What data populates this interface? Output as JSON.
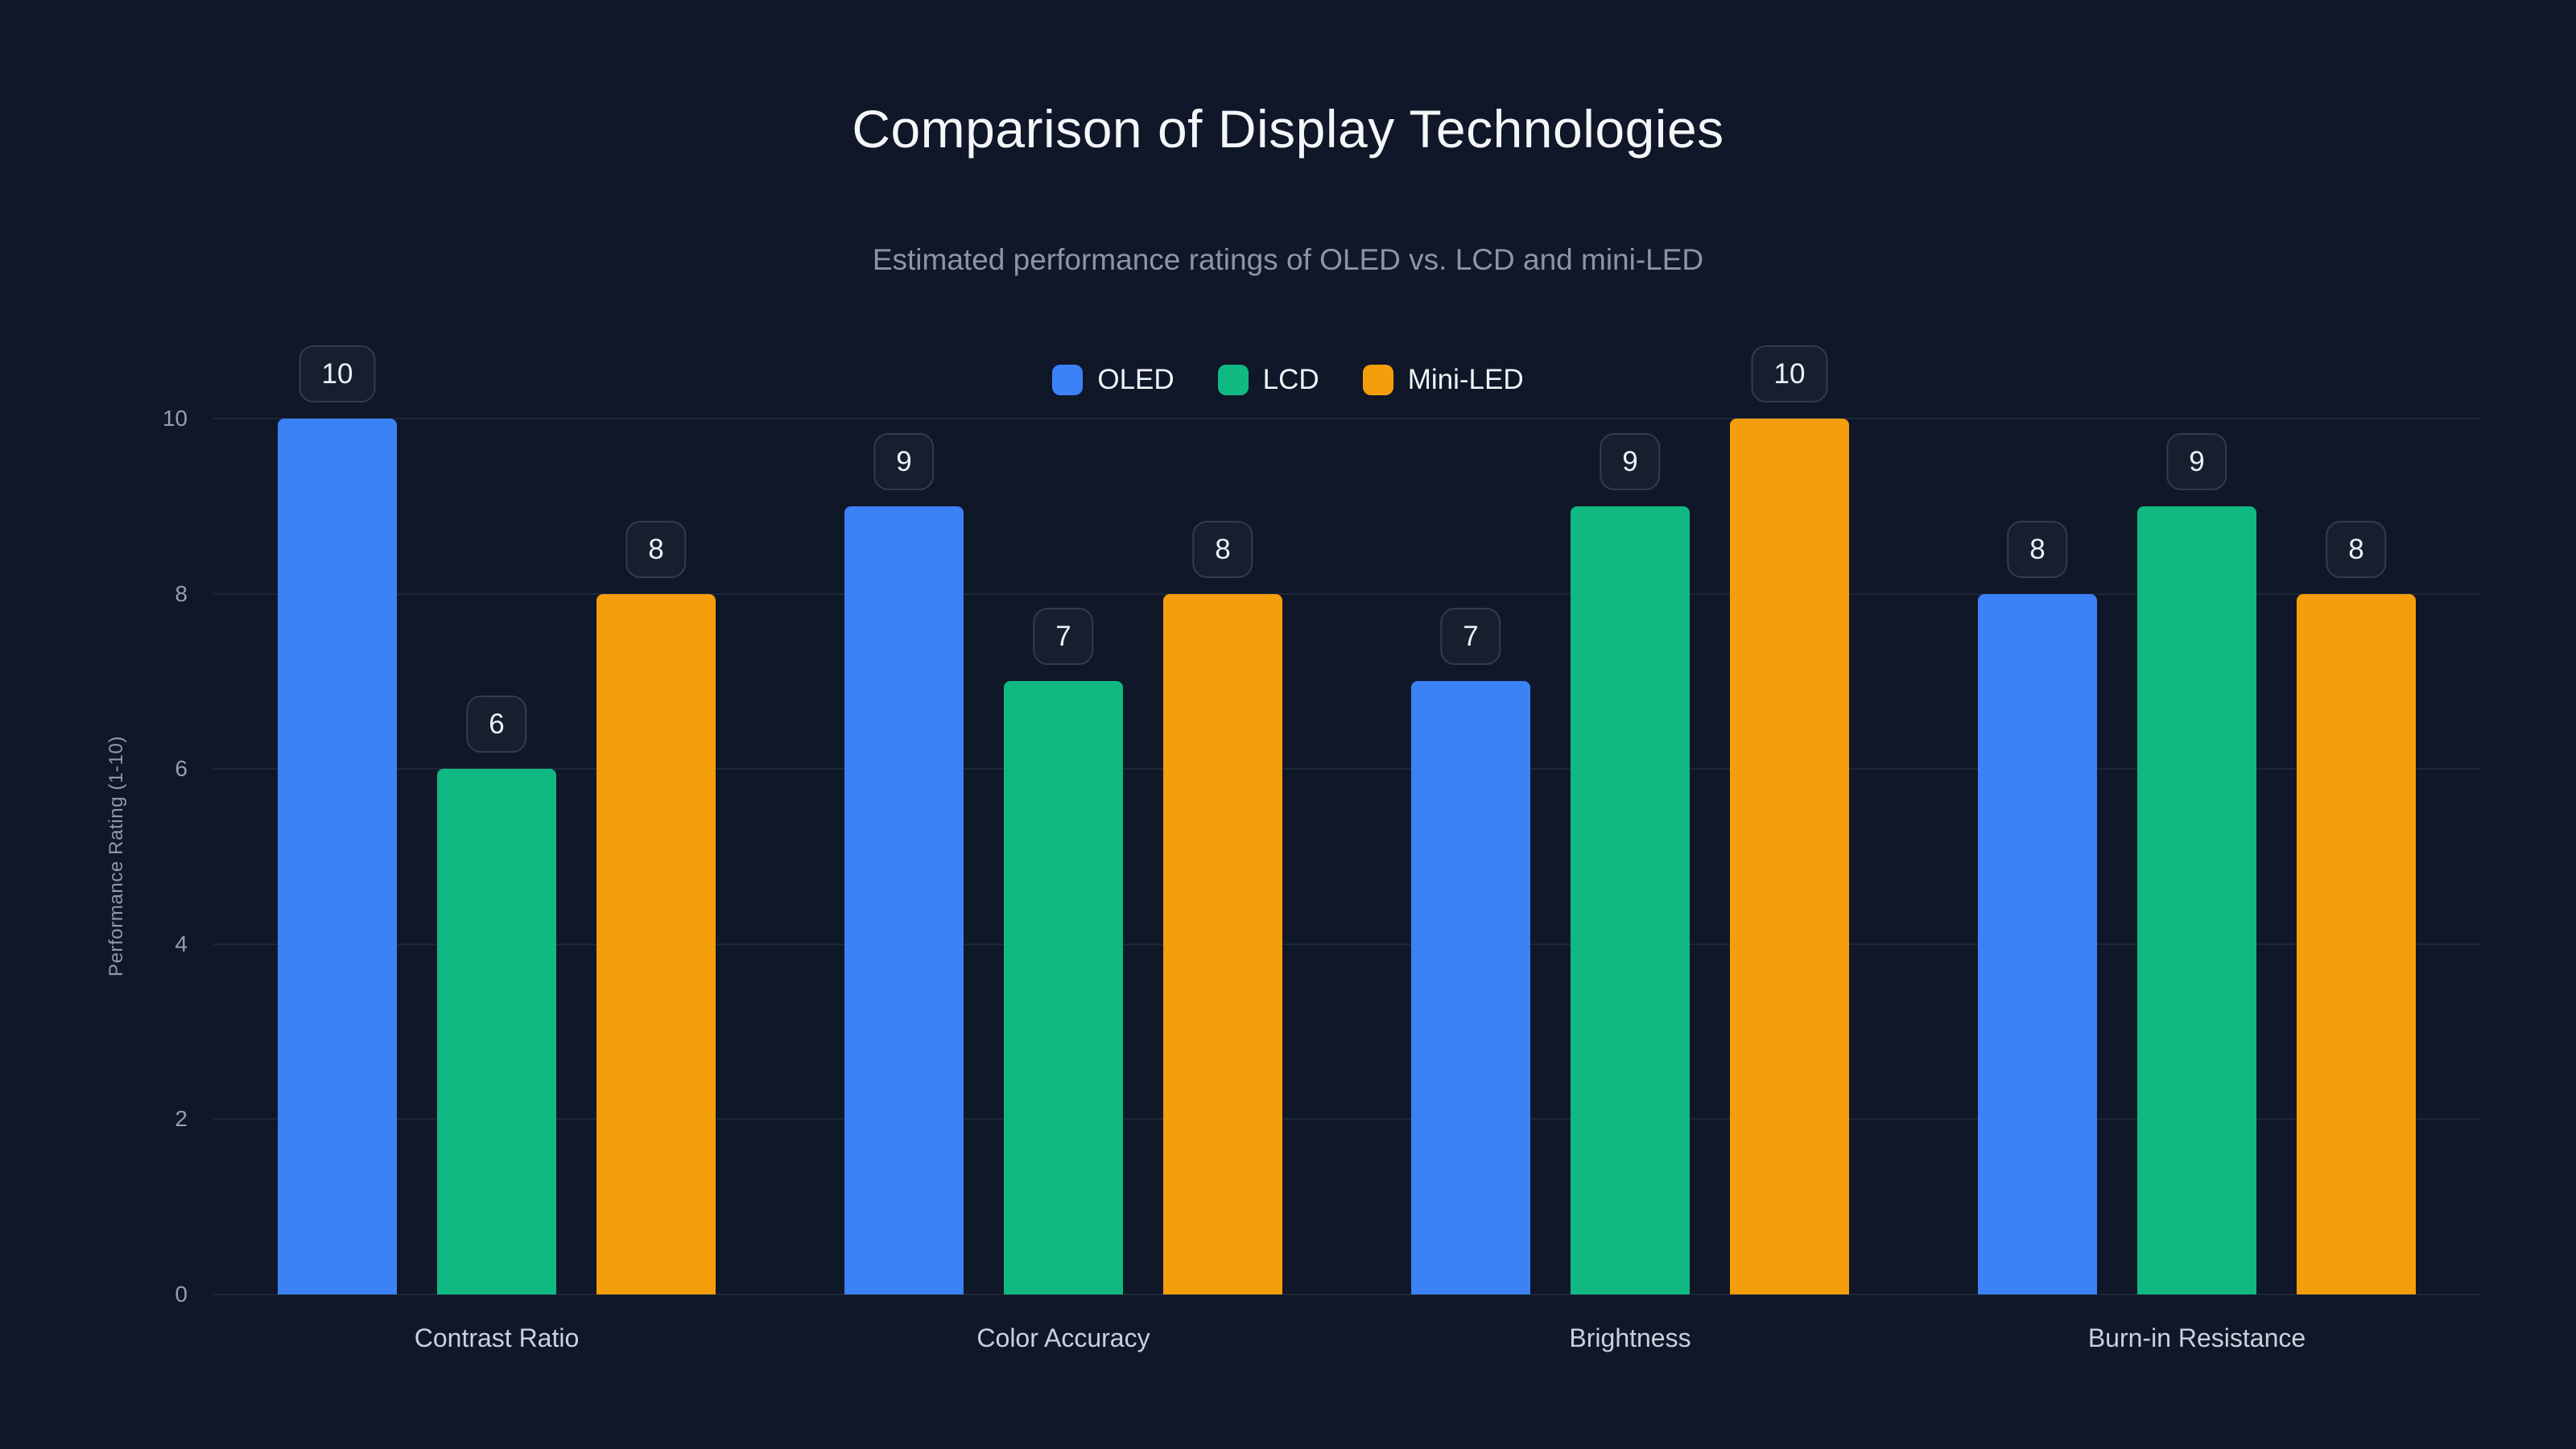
{
  "title": "Comparison of Display Technologies",
  "subtitle": "Estimated performance ratings of OLED vs. LCD and mini-LED",
  "colors": {
    "background": "#0f1728",
    "oled": "#3b82f6",
    "lcd": "#10b981",
    "mini_led": "#f59e0b",
    "gridline": "#1d2738",
    "value_pill_bg": "#171f2f",
    "value_pill_border": "#313c50",
    "title_text": "#f4f6f9",
    "muted_text": "#8b95a4"
  },
  "chart_data": {
    "type": "bar",
    "title": "Comparison of Display Technologies",
    "subtitle": "Estimated performance ratings of OLED vs. LCD and mini-LED",
    "categories": [
      "Contrast Ratio",
      "Color Accuracy",
      "Brightness",
      "Burn-in Resistance"
    ],
    "series": [
      {
        "name": "OLED",
        "color": "#3b82f6",
        "values": [
          10,
          9,
          7,
          8
        ]
      },
      {
        "name": "LCD",
        "color": "#10b981",
        "values": [
          6,
          7,
          9,
          9
        ]
      },
      {
        "name": "Mini-LED",
        "color": "#f59e0b",
        "values": [
          8,
          8,
          10,
          8
        ]
      }
    ],
    "xlabel": "",
    "ylabel": "Performance Rating (1-10)",
    "ylim": [
      0,
      10
    ],
    "yticks": [
      0,
      2,
      4,
      6,
      8,
      10
    ],
    "grid": true,
    "legend_position": "top",
    "value_labels": true
  }
}
